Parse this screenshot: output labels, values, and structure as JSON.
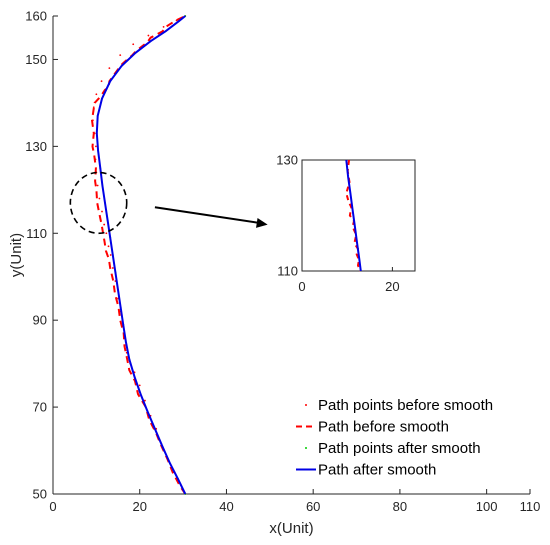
{
  "chart_data": {
    "type": "line",
    "xlabel": "x(Unit)",
    "ylabel": "y(Unit)",
    "xlim": [
      0,
      110
    ],
    "ylim": [
      50,
      160
    ],
    "xticks": [
      0,
      20,
      40,
      60,
      80,
      100,
      110
    ],
    "yticks": [
      50,
      70,
      90,
      110,
      130,
      150,
      160
    ],
    "grid": false,
    "legend_position": "bottom-right",
    "series": [
      {
        "name": "Path points before smooth",
        "style": "points",
        "color": "#ff0000",
        "x": [
          30.5,
          29.5,
          28,
          26.5,
          25,
          23.8,
          22.5,
          21.2,
          20,
          18.8,
          17.8,
          17,
          16.6,
          16.2,
          15.6,
          15,
          14.4,
          13.8,
          13.3,
          12.8,
          12.3,
          11.8,
          11.3,
          10.7,
          10.3,
          10,
          9.8,
          9.9,
          9.6,
          9.2,
          9.4,
          10,
          11.2,
          13,
          15.5,
          18.5,
          22,
          25.5,
          28.5,
          30.5
        ],
        "y": [
          50,
          52,
          55,
          58,
          61.5,
          65,
          68,
          71.5,
          75,
          78,
          80,
          82.5,
          86,
          89,
          92,
          95,
          99,
          102,
          105,
          107,
          110,
          112,
          115,
          118,
          121,
          124,
          127,
          130,
          133,
          136,
          139,
          142,
          145,
          148,
          151,
          153.5,
          155.5,
          157.5,
          159,
          160
        ]
      },
      {
        "name": "Path before smooth",
        "style": "dashed",
        "color": "#ff0000",
        "x": [
          30.5,
          29.2,
          27.6,
          26.4,
          24.8,
          23.8,
          22.2,
          21.4,
          19.6,
          18.9,
          17.6,
          17.1,
          16.5,
          16.3,
          15.5,
          15.1,
          14.3,
          13.9,
          13.2,
          12.9,
          12.2,
          11.9,
          11.2,
          10.8,
          10.2,
          10.0,
          9.7,
          9.9,
          9.5,
          9.1,
          9.4,
          9.0,
          9.6,
          11.0,
          12.0,
          12.8,
          13.0,
          15.2,
          16.0,
          18.3,
          19.2,
          21.8,
          22.5,
          25.3,
          26.0,
          28.4,
          30.5
        ],
        "y": [
          50,
          52,
          55,
          58,
          61.5,
          64,
          67,
          70,
          73,
          76,
          78.5,
          81,
          84,
          87,
          90,
          93,
          96,
          99,
          102,
          104,
          106,
          108,
          112,
          114,
          117,
          120,
          122,
          125,
          128,
          130,
          133,
          136,
          140,
          141.5,
          143,
          143.5,
          145,
          148,
          149,
          151,
          152,
          154,
          155,
          156.5,
          157.5,
          159,
          160
        ]
      },
      {
        "name": "Path points after smooth",
        "style": "points",
        "color": "#00cc00",
        "x": [
          30.5,
          28.8,
          27,
          25.2,
          23.5,
          21.8,
          20.2,
          18.8,
          17.6,
          16.8,
          16.2,
          15.6,
          15,
          14.4,
          13.8,
          13.2,
          12.6,
          12,
          11.4,
          10.9,
          10.4,
          10.1,
          10.3,
          11.3,
          13.2,
          15.8,
          19,
          22.5,
          26,
          29,
          30.5
        ],
        "y": [
          50,
          53.5,
          57,
          61,
          65,
          69,
          73,
          77,
          81,
          85,
          89,
          93,
          97,
          101,
          105,
          109,
          113,
          117,
          121,
          125,
          129,
          133,
          137,
          141,
          145,
          148.5,
          151.5,
          154.2,
          156.5,
          158.8,
          160
        ]
      },
      {
        "name": "Path after smooth",
        "style": "solid",
        "color": "#0000e6",
        "x": [
          30.5,
          28.8,
          27,
          25.2,
          23.5,
          21.8,
          20.2,
          18.8,
          17.6,
          16.8,
          16.2,
          15.6,
          15,
          14.4,
          13.8,
          13.2,
          12.6,
          12,
          11.4,
          10.9,
          10.4,
          10.1,
          10.3,
          11.3,
          13.2,
          15.8,
          19,
          22.5,
          26,
          29,
          30.5
        ],
        "y": [
          50,
          53.5,
          57,
          61,
          65,
          69,
          73,
          77,
          81,
          85,
          89,
          93,
          97,
          101,
          105,
          109,
          113,
          117,
          121,
          125,
          129,
          133,
          137,
          141,
          145,
          148.5,
          151.5,
          154.2,
          156.5,
          158.8,
          160
        ]
      }
    ],
    "inset": {
      "xlim": [
        0,
        25
      ],
      "ylim": [
        110,
        130
      ],
      "xticks": [
        0,
        20
      ],
      "yticks": [
        110,
        130
      ],
      "before_x": [
        10.4,
        10.1,
        10.5,
        9.8,
        10.3,
        10.9,
        10.6,
        11.5,
        11.2,
        12.0,
        11.6,
        12.4,
        12.1,
        12.6,
        12.4,
        12.9
      ],
      "before_y": [
        130,
        128,
        126,
        124,
        122.5,
        121.5,
        120,
        119,
        118,
        116.5,
        115,
        114,
        113,
        112,
        111,
        110
      ],
      "after_x": [
        9.8,
        10.2,
        10.7,
        11.2,
        11.7,
        12.2,
        12.7,
        13.0
      ],
      "after_y": [
        130,
        127,
        124,
        121,
        118,
        115,
        112,
        110
      ]
    },
    "annotation": {
      "circle_center": [
        10.5,
        117
      ],
      "circle_radius_x": 6.5,
      "circle_radius_y": 7,
      "arrow_from": [
        23.5,
        116
      ],
      "arrow_to": [
        49.5,
        112
      ]
    }
  }
}
